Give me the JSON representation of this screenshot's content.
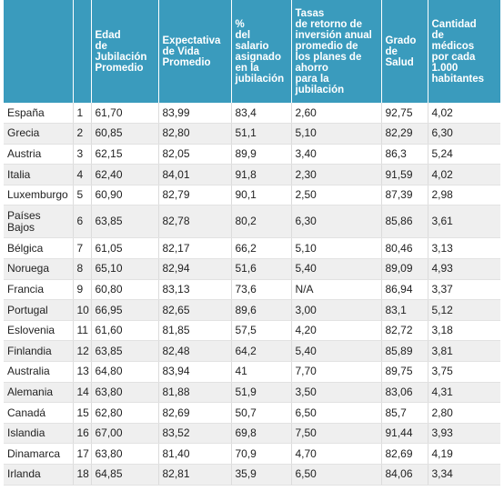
{
  "table": {
    "headers": [
      "",
      "",
      "Edad\nde\nJubilación\nPromedio",
      "Expectativa\nde Vida\nPromedio",
      "%\ndel\nsalario\nasignado\nen la\njubilación",
      "Tasas\nde retorno de\ninversión anual\npromedio de\nlos planes de\nahorro\npara la\njubilación",
      "Grado\nde\nSalud",
      "Cantidad\nde\nmédicos\npor cada\n1.000\nhabitantes"
    ],
    "rows": [
      [
        "España",
        "1",
        "61,70",
        "83,99",
        "83,4",
        "2,60",
        "92,75",
        "4,02"
      ],
      [
        "Grecia",
        "2",
        "60,85",
        "82,80",
        "51,1",
        "5,10",
        "82,29",
        "6,30"
      ],
      [
        "Austria",
        "3",
        "62,15",
        "82,05",
        "89,9",
        "3,40",
        "86,3",
        "5,24"
      ],
      [
        "Italia",
        "4",
        "62,40",
        "84,01",
        "91,8",
        "2,30",
        "91,59",
        "4,02"
      ],
      [
        "Luxemburgo",
        "5",
        "60,90",
        "82,79",
        "90,1",
        "2,50",
        "87,39",
        "2,98"
      ],
      [
        "Países\nBajos",
        "6",
        "63,85",
        "82,78",
        "80,2",
        "6,30",
        "85,86",
        "3,61"
      ],
      [
        "Bélgica",
        "7",
        "61,05",
        "82,17",
        "66,2",
        "5,10",
        "80,46",
        "3,13"
      ],
      [
        "Noruega",
        "8",
        "65,10",
        "82,94",
        "51,6",
        "5,40",
        "89,09",
        "4,93"
      ],
      [
        "Francia",
        "9",
        "60,80",
        "83,13",
        "73,6",
        "N/A",
        "86,94",
        "3,37"
      ],
      [
        "Portugal",
        "10",
        "66,95",
        "82,65",
        "89,6",
        "3,00",
        "83,1",
        "5,12"
      ],
      [
        "Eslovenia",
        "11",
        "61,60",
        "81,85",
        "57,5",
        "4,20",
        "82,72",
        "3,18"
      ],
      [
        "Finlandia",
        "12",
        "63,85",
        "82,48",
        "64,2",
        "5,40",
        "85,89",
        "3,81"
      ],
      [
        "Australia",
        "13",
        "64,80",
        "83,94",
        "41",
        "7,70",
        "89,75",
        "3,75"
      ],
      [
        "Alemania",
        "14",
        "63,80",
        "81,88",
        "51,9",
        "3,50",
        "83,06",
        "4,31"
      ],
      [
        "Canadá",
        "15",
        "62,80",
        "82,69",
        "50,7",
        "6,50",
        "85,7",
        "2,80"
      ],
      [
        "Islandia",
        "16",
        "67,00",
        "83,52",
        "69,8",
        "7,50",
        "91,44",
        "3,93"
      ],
      [
        "Dinamarca",
        "17",
        "63,80",
        "81,40",
        "70,9",
        "4,70",
        "82,69",
        "4,19"
      ],
      [
        "Irlanda",
        "18",
        "64,85",
        "82,81",
        "35,9",
        "6,50",
        "84,06",
        "3,34"
      ]
    ]
  }
}
